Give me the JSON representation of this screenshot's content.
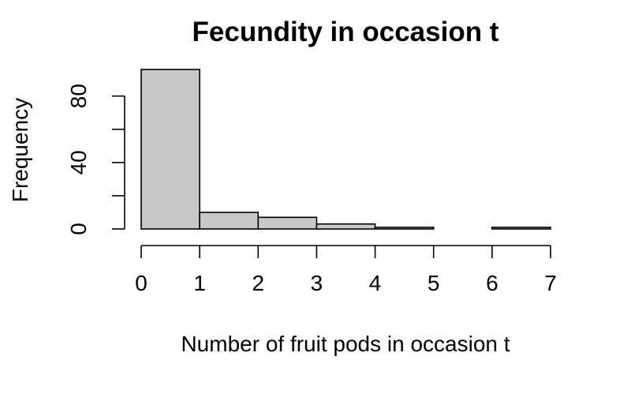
{
  "chart_data": {
    "type": "bar",
    "title": "Fecundity in occasion t",
    "xlabel": "Number of fruit pods in occasion t",
    "ylabel": "Frequency",
    "bins": [
      {
        "from": 0,
        "to": 1,
        "count": 96
      },
      {
        "from": 1,
        "to": 2,
        "count": 10
      },
      {
        "from": 2,
        "to": 3,
        "count": 7
      },
      {
        "from": 3,
        "to": 4,
        "count": 3
      },
      {
        "from": 4,
        "to": 5,
        "count": 1
      },
      {
        "from": 5,
        "to": 6,
        "count": 0
      },
      {
        "from": 6,
        "to": 7,
        "count": 1
      }
    ],
    "xlim": [
      0,
      7
    ],
    "ylim": [
      0,
      96
    ],
    "x_ticks": [
      "0",
      "1",
      "2",
      "3",
      "4",
      "5",
      "6",
      "7"
    ],
    "y_ticks": [
      0,
      20,
      40,
      60,
      80
    ],
    "y_tick_labels": [
      "0",
      "",
      "40",
      "",
      "80"
    ],
    "bar_fill": "#c8c8c8",
    "bar_stroke": "#000000",
    "grid": false
  }
}
